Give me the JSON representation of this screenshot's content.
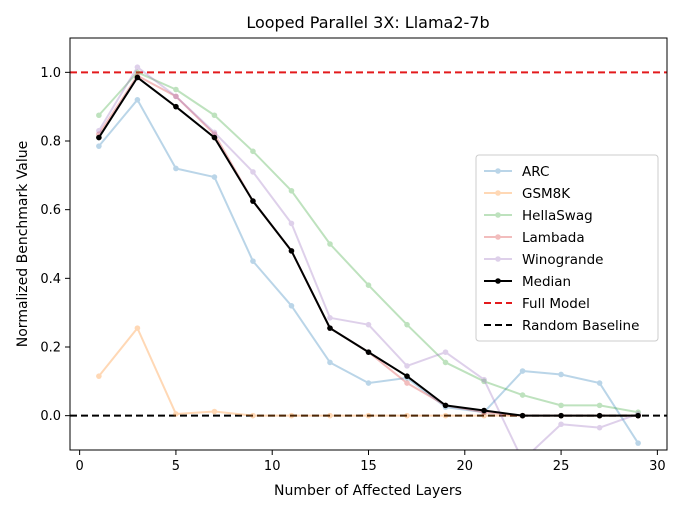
{
  "chart_data": {
    "type": "line",
    "title": "Looped Parallel 3X: Llama2-7b",
    "xlabel": "Number of Affected Layers",
    "ylabel": "Normalized Benchmark Value",
    "xlim": [
      -0.5,
      30.5
    ],
    "ylim": [
      -0.1,
      1.1
    ],
    "xticks": [
      0,
      5,
      10,
      15,
      20,
      25,
      30
    ],
    "xtick_labels": [
      "0",
      "5",
      "10",
      "15",
      "20",
      "25",
      "30"
    ],
    "yticks": [
      0.0,
      0.2,
      0.4,
      0.6,
      0.8,
      1.0
    ],
    "ytick_labels": [
      "0.0",
      "0.2",
      "0.4",
      "0.6",
      "0.8",
      "1.0"
    ],
    "grid": false,
    "legend_position": "center-right",
    "x": [
      1,
      3,
      5,
      7,
      9,
      11,
      13,
      15,
      17,
      19,
      21,
      23,
      25,
      27,
      29
    ],
    "series": [
      {
        "name": "ARC",
        "color": "#1f77b4",
        "alpha": 0.3,
        "style": "solid-marker",
        "values": [
          0.785,
          0.92,
          0.72,
          0.695,
          0.45,
          0.32,
          0.155,
          0.095,
          0.11,
          0.025,
          0.01,
          0.13,
          0.12,
          0.095,
          -0.08
        ]
      },
      {
        "name": "GSM8K",
        "color": "#ff7f0e",
        "alpha": 0.3,
        "style": "solid-marker",
        "values": [
          0.115,
          0.255,
          0.005,
          0.012,
          0.0,
          0.0,
          0.0,
          0.0,
          0.0,
          0.0,
          0.0,
          0.0,
          0.0,
          0.0,
          0.0
        ]
      },
      {
        "name": "HellaSwag",
        "color": "#2ca02c",
        "alpha": 0.3,
        "style": "solid-marker",
        "values": [
          0.875,
          1.0,
          0.95,
          0.875,
          0.77,
          0.655,
          0.5,
          0.38,
          0.265,
          0.155,
          0.1,
          0.06,
          0.03,
          0.03,
          0.01
        ]
      },
      {
        "name": "Lambada",
        "color": "#d62728",
        "alpha": 0.3,
        "style": "solid-marker",
        "values": [
          0.82,
          0.99,
          0.93,
          0.82,
          0.625,
          0.48,
          0.255,
          0.185,
          0.095,
          0.03,
          0.01,
          0.0,
          0.0,
          0.0,
          0.0
        ]
      },
      {
        "name": "Winogrande",
        "color": "#9467bd",
        "alpha": 0.3,
        "style": "solid-marker",
        "values": [
          0.83,
          1.015,
          0.93,
          0.825,
          0.71,
          0.56,
          0.285,
          0.265,
          0.145,
          0.185,
          0.105,
          -0.13,
          -0.025,
          -0.035,
          0.005
        ]
      },
      {
        "name": "Median",
        "color": "#000000",
        "alpha": 1.0,
        "style": "solid-marker",
        "values": [
          0.81,
          0.985,
          0.9,
          0.81,
          0.625,
          0.48,
          0.255,
          0.185,
          0.115,
          0.03,
          0.015,
          0.0,
          0.0,
          0.0,
          0.0
        ]
      }
    ],
    "reference_lines": [
      {
        "name": "Full Model",
        "y": 1.0,
        "color": "#e31a1c",
        "style": "dashed"
      },
      {
        "name": "Random Baseline",
        "y": 0.0,
        "color": "#000000",
        "style": "dashed"
      }
    ]
  }
}
